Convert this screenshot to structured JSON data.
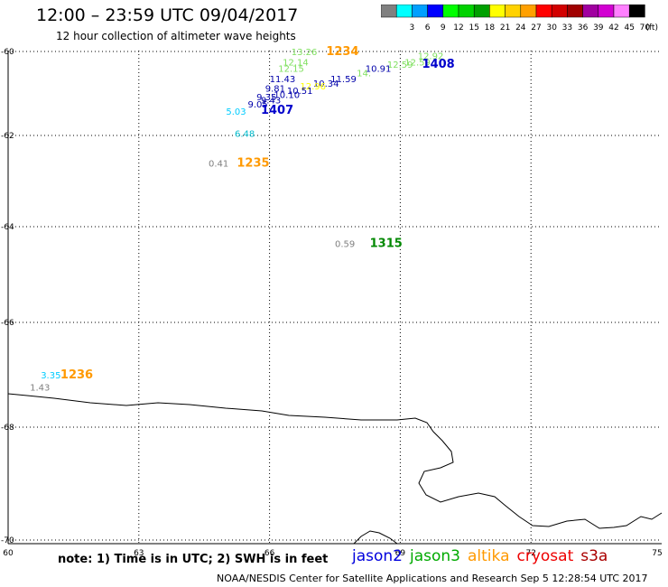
{
  "title": "12:00 – 23:59 UTC 09/04/2017",
  "subtitle": "12 hour collection of altimeter wave heights",
  "color_scale": {
    "unit": "(ft)",
    "entries": [
      {
        "label": "",
        "color": "#808080"
      },
      {
        "label": "3",
        "color": "#00ffff"
      },
      {
        "label": "6",
        "color": "#00a0ff"
      },
      {
        "label": "9",
        "color": "#0000ff"
      },
      {
        "label": "12",
        "color": "#00ff00"
      },
      {
        "label": "15",
        "color": "#00d200"
      },
      {
        "label": "18",
        "color": "#00a000"
      },
      {
        "label": "21",
        "color": "#ffff00"
      },
      {
        "label": "24",
        "color": "#ffd200"
      },
      {
        "label": "27",
        "color": "#ffa000"
      },
      {
        "label": "30",
        "color": "#ff0000"
      },
      {
        "label": "33",
        "color": "#d20000"
      },
      {
        "label": "36",
        "color": "#a00000"
      },
      {
        "label": "39",
        "color": "#a000a0"
      },
      {
        "label": "42",
        "color": "#d200d2"
      },
      {
        "label": "45",
        "color": "#ff80ff"
      },
      {
        "label": "70",
        "color": "#000000"
      }
    ]
  },
  "axes": {
    "lon_range": [
      60,
      75
    ],
    "lat_range": [
      -60,
      -70
    ],
    "lon_ticks": [
      "60",
      "63",
      "66",
      "69",
      "72",
      "75"
    ],
    "lat_ticks": [
      "-60",
      "-62",
      "-64",
      "-66",
      "-68",
      "-70"
    ]
  },
  "observations": [
    {
      "text": "13.26",
      "color": "#80e060",
      "lon": 66.5,
      "lat": -60.0
    },
    {
      "text": "1234",
      "color": "#ff9900",
      "lon": 67.3,
      "lat": -60.0,
      "time": true
    },
    {
      "text": "12.92",
      "color": "#80e060",
      "lon": 69.4,
      "lat": -60.1
    },
    {
      "text": "12.59",
      "color": "#80e060",
      "lon": 69.1,
      "lat": -60.25
    },
    {
      "text": "12.14",
      "color": "#80e060",
      "lon": 66.3,
      "lat": -60.25
    },
    {
      "text": "12.59",
      "color": "#80e060",
      "lon": 68.7,
      "lat": -60.3
    },
    {
      "text": "1408",
      "color": "#0000cc",
      "lon": 69.5,
      "lat": -60.3,
      "time": true
    },
    {
      "text": "10.91",
      "color": "#0000aa",
      "lon": 68.2,
      "lat": -60.4
    },
    {
      "text": "12.15",
      "color": "#80e060",
      "lon": 66.2,
      "lat": -60.4
    },
    {
      "text": "14.",
      "color": "#80e060",
      "lon": 68.0,
      "lat": -60.5
    },
    {
      "text": "11.43",
      "color": "#0000aa",
      "lon": 66.0,
      "lat": -60.65
    },
    {
      "text": "11.59",
      "color": "#0000aa",
      "lon": 67.4,
      "lat": -60.65
    },
    {
      "text": "10.34",
      "color": "#0000aa",
      "lon": 67.0,
      "lat": -60.75
    },
    {
      "text": "12.96",
      "color": "#ffff00",
      "lon": 66.7,
      "lat": -60.82
    },
    {
      "text": "9.81",
      "color": "#0000aa",
      "lon": 65.9,
      "lat": -60.87
    },
    {
      "text": "10.51",
      "color": "#0000aa",
      "lon": 66.4,
      "lat": -60.92
    },
    {
      "text": "9.35",
      "color": "#0000aa",
      "lon": 65.7,
      "lat": -61.07
    },
    {
      "text": "10.10",
      "color": "#0000aa",
      "lon": 66.1,
      "lat": -61.02
    },
    {
      "text": "9.43",
      "color": "#0000aa",
      "lon": 65.8,
      "lat": -61.15
    },
    {
      "text": "9.05",
      "color": "#0000aa",
      "lon": 65.5,
      "lat": -61.25
    },
    {
      "text": "5.03",
      "color": "#00ccff",
      "lon": 65.0,
      "lat": -61.42
    },
    {
      "text": "1407",
      "color": "#0000cc",
      "lon": 65.8,
      "lat": -61.4,
      "time": true
    },
    {
      "text": "6.48",
      "color": "#00bbcc",
      "lon": 65.2,
      "lat": -61.95
    },
    {
      "text": "0.41",
      "color": "#808080",
      "lon": 64.6,
      "lat": -62.6
    },
    {
      "text": "1235",
      "color": "#ff9900",
      "lon": 65.25,
      "lat": -62.6,
      "time": true
    },
    {
      "text": "0.59",
      "color": "#808080",
      "lon": 67.5,
      "lat": -64.35
    },
    {
      "text": "1315",
      "color": "#008800",
      "lon": 68.3,
      "lat": -64.35,
      "time": true
    },
    {
      "text": "3.35",
      "color": "#00ccff",
      "lon": 60.75,
      "lat": -67.0
    },
    {
      "text": "1236",
      "color": "#ff9900",
      "lon": 61.2,
      "lat": -67.0,
      "time": true
    },
    {
      "text": "1.43",
      "color": "#808080",
      "lon": 60.5,
      "lat": -67.23
    }
  ],
  "note": "note: 1) Time is in UTC; 2) SWH is in feet",
  "legend": [
    {
      "label": "jason2",
      "color": "#0000dd"
    },
    {
      "label": "jason3",
      "color": "#00aa00"
    },
    {
      "label": "altika",
      "color": "#ff9900"
    },
    {
      "label": "cryosat",
      "color": "#ee0000"
    },
    {
      "label": "s3a",
      "color": "#aa0000"
    }
  ],
  "credit": "NOAA/NESDIS Center for Satellite Applications and Research   Sep  5 12:28:54 UTC 2017"
}
